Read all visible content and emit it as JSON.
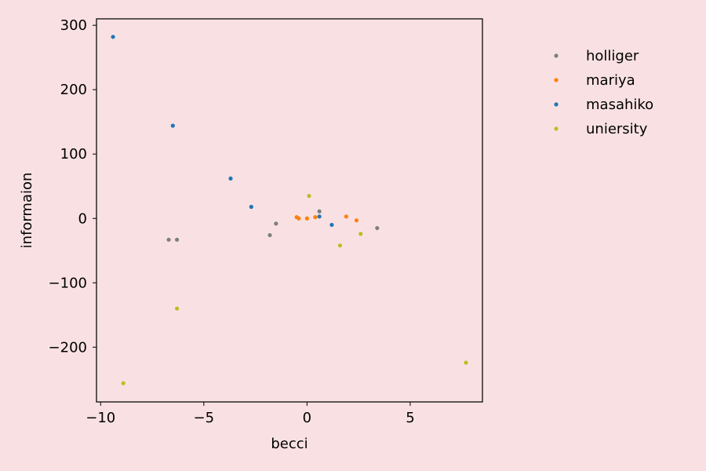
{
  "chart_data": {
    "type": "scatter",
    "title": "",
    "xlabel": "becci",
    "ylabel": "informaion",
    "xlim": [
      -10.2,
      8.5
    ],
    "ylim": [
      -285,
      310
    ],
    "xticks": [
      -10,
      -5,
      0,
      5
    ],
    "xtick_labels": [
      "−10",
      "−5",
      "0",
      "5"
    ],
    "yticks": [
      -200,
      -100,
      0,
      100,
      200,
      300
    ],
    "ytick_labels": [
      "−200",
      "−100",
      "0",
      "100",
      "200",
      "300"
    ],
    "grid": false,
    "legend_position": "outside-right",
    "series": [
      {
        "name": "holliger",
        "color": "#7f7f7f",
        "points": [
          {
            "x": -6.7,
            "y": -33
          },
          {
            "x": -6.3,
            "y": -33
          },
          {
            "x": -1.8,
            "y": -26
          },
          {
            "x": -1.5,
            "y": -8
          },
          {
            "x": 0.6,
            "y": 11
          },
          {
            "x": 3.4,
            "y": -15
          }
        ]
      },
      {
        "name": "mariya",
        "color": "#ff7f0e",
        "points": [
          {
            "x": -0.5,
            "y": 2
          },
          {
            "x": -0.4,
            "y": 0
          },
          {
            "x": 0.0,
            "y": 0
          },
          {
            "x": 0.4,
            "y": 2
          },
          {
            "x": 1.9,
            "y": 3
          },
          {
            "x": 2.4,
            "y": -3
          }
        ]
      },
      {
        "name": "masahiko",
        "color": "#1f77b4",
        "points": [
          {
            "x": -9.4,
            "y": 282
          },
          {
            "x": -6.5,
            "y": 144
          },
          {
            "x": -3.7,
            "y": 62
          },
          {
            "x": -2.7,
            "y": 18
          },
          {
            "x": 0.6,
            "y": 3
          },
          {
            "x": 1.2,
            "y": -10
          }
        ]
      },
      {
        "name": "uniersity",
        "color": "#bcbd22",
        "points": [
          {
            "x": -8.9,
            "y": -256
          },
          {
            "x": -6.3,
            "y": -140
          },
          {
            "x": 0.1,
            "y": 35
          },
          {
            "x": 1.6,
            "y": -42
          },
          {
            "x": 2.6,
            "y": -24
          },
          {
            "x": 7.7,
            "y": -224
          }
        ]
      }
    ]
  }
}
